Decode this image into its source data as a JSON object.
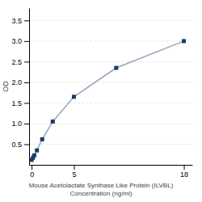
{
  "chart_data": {
    "type": "line",
    "xlabel": [
      "Mouse Acetolactate Synthase Like Protein (ILVBL)",
      "Concentration (ng/ml)"
    ],
    "ylabel": "OD",
    "x": [
      0,
      0.156,
      0.313,
      0.625,
      1.25,
      2.5,
      5,
      10,
      18
    ],
    "series": [
      {
        "color": "#1b3a6b",
        "marker": "square",
        "values": [
          0.12,
          0.17,
          0.23,
          0.35,
          0.62,
          1.05,
          1.65,
          2.35,
          3.0
        ]
      }
    ],
    "xlim": [
      -0.3,
      19
    ],
    "xticks": [
      0,
      5,
      18
    ],
    "ylim": [
      0,
      3.8
    ],
    "yticks": [
      0.5,
      {
        "value": 1.0,
        "label": "1.0"
      },
      1.5,
      {
        "value": 2.0,
        "label": "2.0"
      },
      2.5,
      {
        "value": 3.0,
        "label": "3.0"
      },
      3.5
    ],
    "grid": true
  }
}
